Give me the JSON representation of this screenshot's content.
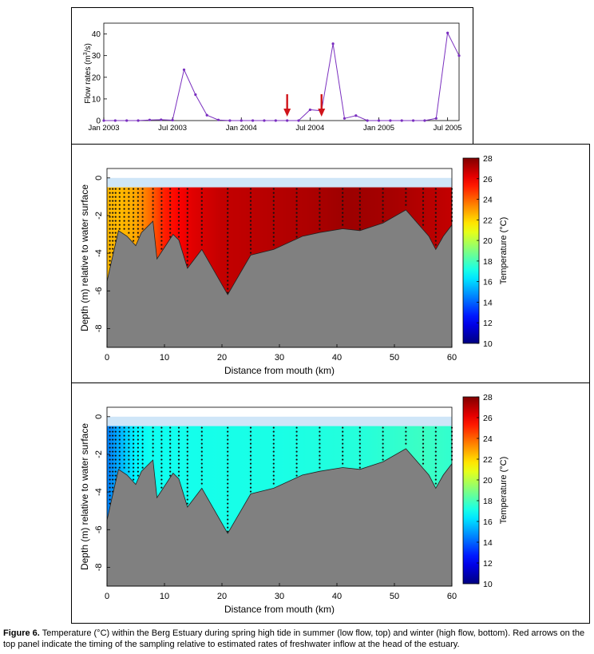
{
  "chart_data": [
    {
      "type": "line",
      "panel": "flow",
      "ylabel": "Flow rates (m³/s)",
      "ylabel_main": "Flow rates (m",
      "ylabel_sup": "3",
      "ylabel_end": "/s)",
      "ylim": [
        0,
        45
      ],
      "yticks": [
        0,
        10,
        20,
        30,
        40
      ],
      "xlim_months": [
        0,
        31
      ],
      "xticks": [
        {
          "label": "Jan 2003",
          "month": 0
        },
        {
          "label": "Jul 2003",
          "month": 6
        },
        {
          "label": "Jan 2004",
          "month": 12
        },
        {
          "label": "Jul 2004",
          "month": 18
        },
        {
          "label": "Jan 2005",
          "month": 24
        },
        {
          "label": "Jul 2005",
          "month": 30
        }
      ],
      "series": [
        {
          "color": "#7a2fbf",
          "points": [
            [
              "2003-01",
              0
            ],
            [
              "2003-02",
              0
            ],
            [
              "2003-03",
              0
            ],
            [
              "2003-04",
              0
            ],
            [
              "2003-05",
              0.3
            ],
            [
              "2003-06",
              0.4
            ],
            [
              "2003-07",
              0.2
            ],
            [
              "2003-08",
              23.5
            ],
            [
              "2003-09",
              12
            ],
            [
              "2003-10",
              2.5
            ],
            [
              "2003-11",
              0.3
            ],
            [
              "2003-12",
              0
            ],
            [
              "2004-01",
              0
            ],
            [
              "2004-02",
              0
            ],
            [
              "2004-03",
              0
            ],
            [
              "2004-04",
              0
            ],
            [
              "2004-05",
              0
            ],
            [
              "2004-06",
              0
            ],
            [
              "2004-07",
              5
            ],
            [
              "2004-08",
              4.5
            ],
            [
              "2004-09",
              35.5
            ],
            [
              "2004-10",
              1
            ],
            [
              "2004-11",
              2.3
            ],
            [
              "2004-12",
              0
            ],
            [
              "2005-01",
              0
            ],
            [
              "2005-02",
              0
            ],
            [
              "2005-03",
              0
            ],
            [
              "2005-04",
              0
            ],
            [
              "2005-05",
              0
            ],
            [
              "2005-06",
              1
            ],
            [
              "2005-07",
              40.5
            ],
            [
              "2005-08",
              30
            ]
          ]
        }
      ],
      "sampling_arrows": [
        "2004-05",
        "2004-08"
      ],
      "arrow_color": "#d0141a"
    },
    {
      "type": "heatmap",
      "panel": "summer",
      "xlabel": "Distance from mouth (km)",
      "ylabel": "Depth (m) relative to water surface",
      "xlim": [
        0,
        60
      ],
      "ylim": [
        -9,
        0.5
      ],
      "xticks": [
        0,
        10,
        20,
        30,
        40,
        50,
        60
      ],
      "yticks": [
        0,
        -2,
        -4,
        -6,
        -8
      ],
      "colorbar": {
        "label": "Temperature (°C)",
        "min": 10,
        "max": 28,
        "ticks": [
          10,
          12,
          14,
          16,
          18,
          20,
          22,
          24,
          26,
          28
        ]
      },
      "temperature_profile": [
        [
          0,
          22.5
        ],
        [
          3,
          22.5
        ],
        [
          5,
          22.8
        ],
        [
          7,
          23.5
        ],
        [
          9,
          25
        ],
        [
          12,
          25.7
        ],
        [
          15,
          26.3
        ],
        [
          20,
          26.8
        ],
        [
          35,
          27.2
        ],
        [
          42,
          27.5
        ],
        [
          50,
          27.3
        ],
        [
          60,
          26.8
        ]
      ]
    },
    {
      "type": "heatmap",
      "panel": "winter",
      "xlabel": "Distance from mouth (km)",
      "ylabel": "Depth (m) relative to water surface",
      "xlim": [
        0,
        60
      ],
      "ylim": [
        -9,
        0.5
      ],
      "xticks": [
        0,
        10,
        20,
        30,
        40,
        50,
        60
      ],
      "yticks": [
        0,
        -2,
        -4,
        -6,
        -8
      ],
      "colorbar": {
        "label": "Temperature (°C)",
        "min": 10,
        "max": 28,
        "ticks": [
          10,
          12,
          14,
          16,
          18,
          20,
          22,
          24,
          26,
          28
        ]
      },
      "temperature_profile": [
        [
          0,
          14.5
        ],
        [
          2,
          15.2
        ],
        [
          4,
          16.4
        ],
        [
          7,
          17
        ],
        [
          15,
          17.1
        ],
        [
          30,
          17.2
        ],
        [
          45,
          17.4
        ],
        [
          55,
          17.8
        ],
        [
          60,
          17.6
        ]
      ]
    }
  ],
  "bathymetry": [
    [
      0,
      -5.5
    ],
    [
      0.8,
      -4.4
    ],
    [
      2,
      -2.8
    ],
    [
      3.5,
      -3.1
    ],
    [
      5,
      -3.6
    ],
    [
      6,
      -2.9
    ],
    [
      8,
      -2.3
    ],
    [
      8.7,
      -4.3
    ],
    [
      11.5,
      -3
    ],
    [
      12.5,
      -3.3
    ],
    [
      14,
      -4.8
    ],
    [
      16.5,
      -3.8
    ],
    [
      21,
      -6.2
    ],
    [
      25,
      -4.1
    ],
    [
      29,
      -3.8
    ],
    [
      34,
      -3.1
    ],
    [
      37,
      -2.9
    ],
    [
      41,
      -2.7
    ],
    [
      44,
      -2.8
    ],
    [
      48,
      -2.4
    ],
    [
      52,
      -1.7
    ],
    [
      56,
      -3.1
    ],
    [
      57.2,
      -3.8
    ],
    [
      58.5,
      -3.1
    ],
    [
      60,
      -2.5
    ]
  ],
  "sampling_stations_km": [
    0.5,
    1,
    1.5,
    2.2,
    3,
    3.8,
    4.6,
    5.4,
    6.2,
    8,
    9.5,
    11,
    12.5,
    14,
    16.5,
    21,
    25,
    29,
    33,
    37,
    41,
    44,
    48,
    52,
    55,
    57.2,
    60
  ],
  "water_surface_m": 0,
  "water_top_band_m": -0.5,
  "colors": {
    "bed": "#808080",
    "surface_band": "#cfe6f8"
  },
  "caption": {
    "label": "Figure 6.",
    "text": " Temperature (°C) within the Berg Estuary during spring high tide in summer (low flow, top) and winter (high flow, bottom).  Red arrows on the top panel indicate the timing of the sampling relative to estimated rates of freshwater inflow at the head of the estuary."
  }
}
